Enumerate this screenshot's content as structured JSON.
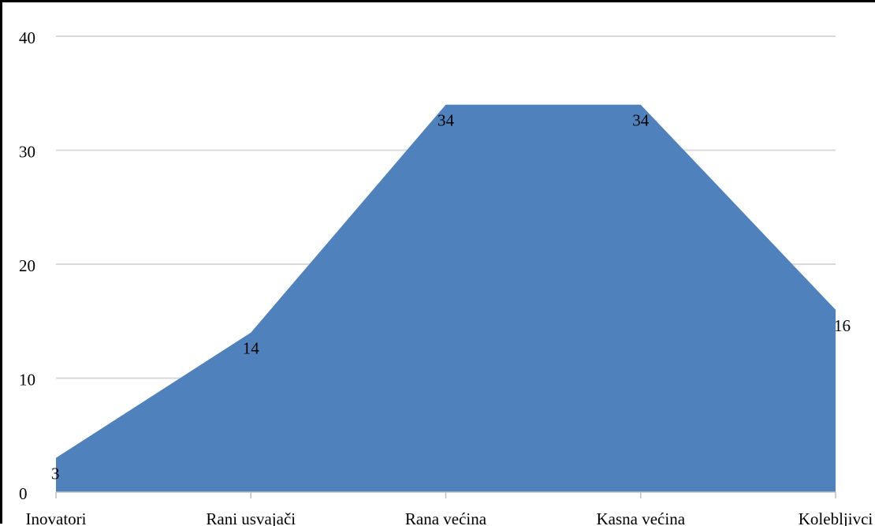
{
  "chart_data": {
    "type": "area",
    "categories": [
      "Inovatori",
      "Rani usvajači",
      "Rana većina",
      "Kasna većina",
      "Kolebljivci"
    ],
    "values": [
      3,
      14,
      34,
      34,
      16
    ],
    "value_labels": [
      "3",
      "14",
      "34",
      "34",
      "16"
    ],
    "ylim": [
      0,
      40
    ],
    "yticks": [
      0,
      10,
      20,
      30,
      40
    ],
    "ytick_labels": [
      "0",
      "10",
      "20",
      "30",
      "40"
    ],
    "grid": true,
    "legend": "none",
    "colors": {
      "area": "#4F81BD",
      "grid": "#d9d9d9",
      "axis": "#bfbfbf",
      "text": "#000000"
    }
  }
}
